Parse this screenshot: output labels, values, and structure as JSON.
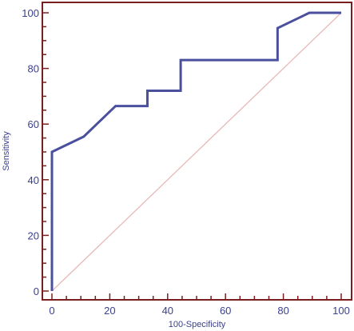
{
  "chart_data": {
    "type": "line",
    "xlabel": "100-Specificity",
    "ylabel": "Sensitivity",
    "xlim": [
      0,
      100
    ],
    "ylim": [
      0,
      100
    ],
    "x_ticks": [
      0,
      20,
      40,
      60,
      80,
      100
    ],
    "y_ticks": [
      0,
      20,
      40,
      60,
      80,
      100
    ],
    "x_tick_labels": [
      "0",
      "20",
      "40",
      "60",
      "80",
      "100"
    ],
    "y_tick_labels": [
      "0",
      "20",
      "40",
      "60",
      "80",
      "100"
    ],
    "grid": false,
    "series": [
      {
        "role": "roc-curve",
        "color": "#4a4f9e",
        "x": [
          0,
          0,
          0,
          11,
          22,
          33,
          33,
          44.5,
          44.5,
          78,
          78,
          89,
          100
        ],
        "y": [
          0,
          0,
          50,
          55.5,
          66.5,
          66.5,
          72,
          72,
          83,
          83,
          94.5,
          100,
          100
        ]
      },
      {
        "role": "reference-diagonal",
        "color": "#e8b8b8",
        "x": [
          0,
          100
        ],
        "y": [
          0,
          100
        ]
      }
    ],
    "colors": {
      "frame": "#7a1f1f",
      "tick_marks": "#7a1f1f",
      "text": "#3a3f8f"
    }
  }
}
